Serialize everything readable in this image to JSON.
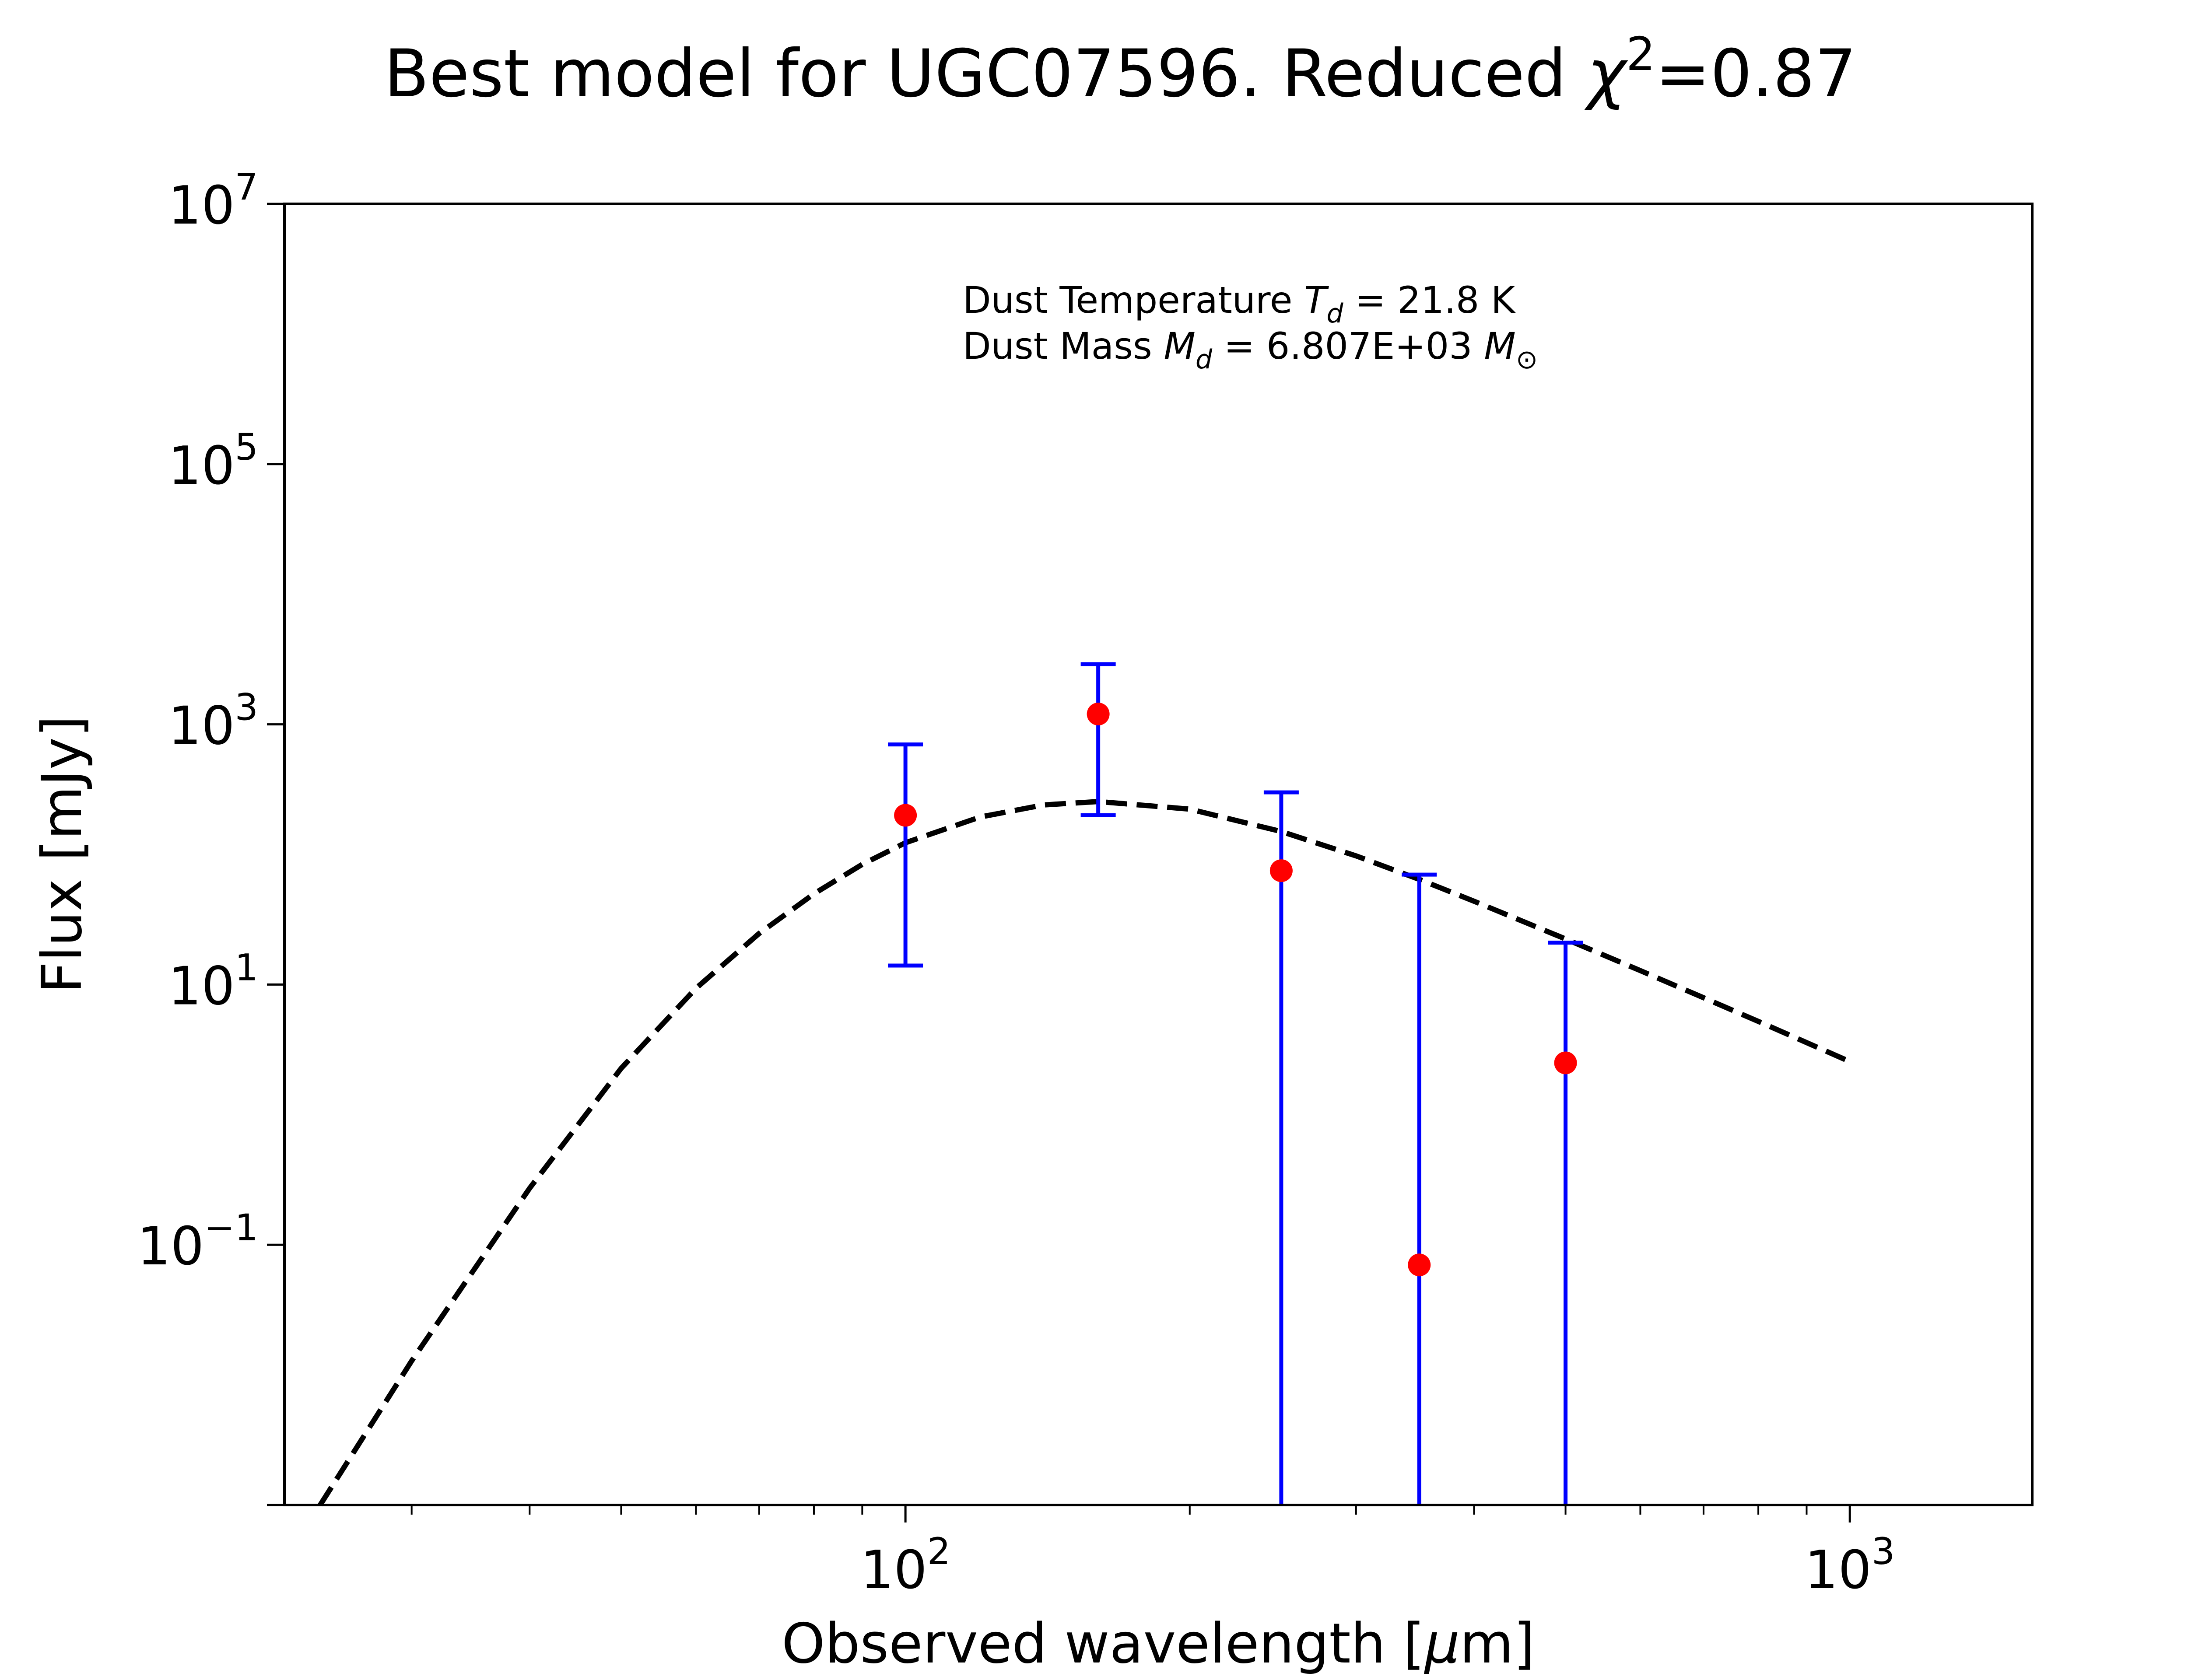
{
  "chart_data": {
    "type": "scatter",
    "title": "Best model for UGC07596. Reduced χ²=0.87",
    "title_parts": {
      "prefix": "Best model for UGC07596. Reduced ",
      "chi": "χ",
      "sup": "2",
      "suffix": "=0.87"
    },
    "xlabel": "Observed wavelength [μm]",
    "xlabel_parts": {
      "prefix": "Observed wavelength [",
      "mu": "μ",
      "suffix": "m]"
    },
    "ylabel": "Flux [mJy]",
    "xscale": "log",
    "yscale": "log",
    "xlim": [
      22,
      1560
    ],
    "ylim": [
      0.001,
      10000000
    ],
    "x_ticks": [
      {
        "value": 100,
        "base": "10",
        "exp": "2"
      },
      {
        "value": 1000,
        "base": "10",
        "exp": "3"
      }
    ],
    "y_ticks": [
      {
        "value": 0.1,
        "base": "10",
        "exp": "−1"
      },
      {
        "value": 10,
        "base": "10",
        "exp": "1"
      },
      {
        "value": 1000,
        "base": "10",
        "exp": "3"
      },
      {
        "value": 100000,
        "base": "10",
        "exp": "5"
      },
      {
        "value": 10000000,
        "base": "10",
        "exp": "7"
      }
    ],
    "annotations": {
      "line1_prefix": "Dust Temperature ",
      "line1_var": "T",
      "line1_sub": "d",
      "line1_suffix": " = 21.8 K",
      "line2_prefix": "Dust Mass ",
      "line2_var": "M",
      "line2_sub": "d",
      "line2_mid": " = 6.807E+03 ",
      "line2_unit": "M",
      "line2_unit_sub": "⊙"
    },
    "observed": {
      "name": "observed",
      "color": "#ff0000",
      "errorbar_color": "#0000ff",
      "points": [
        {
          "x": 100,
          "y": 200,
          "yerr_low": 14,
          "yerr_high": 700
        },
        {
          "x": 160,
          "y": 1200,
          "yerr_low": 200,
          "yerr_high": 2900
        },
        {
          "x": 250,
          "y": 75,
          "yerr_low": 0.001,
          "yerr_high": 300
        },
        {
          "x": 350,
          "y": 0.07,
          "yerr_low": 0.001,
          "yerr_high": 70
        },
        {
          "x": 500,
          "y": 2.5,
          "yerr_low": 0.001,
          "yerr_high": 21
        }
      ]
    },
    "model": {
      "name": "model",
      "color": "#000000",
      "style": "dashed",
      "x": [
        24,
        30,
        40,
        50,
        60,
        70,
        80,
        90,
        100,
        120,
        140,
        160,
        200,
        250,
        300,
        350,
        400,
        500,
        600,
        700,
        800,
        900,
        1000
      ],
      "y": [
        0.001,
        0.0128,
        0.272,
        2.27,
        9.35,
        24.7,
        49.8,
        83.9,
        123,
        194,
        240,
        255,
        223,
        150,
        97.5,
        64.3,
        43.7,
        22.4,
        12.8,
        7.92,
        5.21,
        3.58,
        2.56
      ]
    }
  }
}
